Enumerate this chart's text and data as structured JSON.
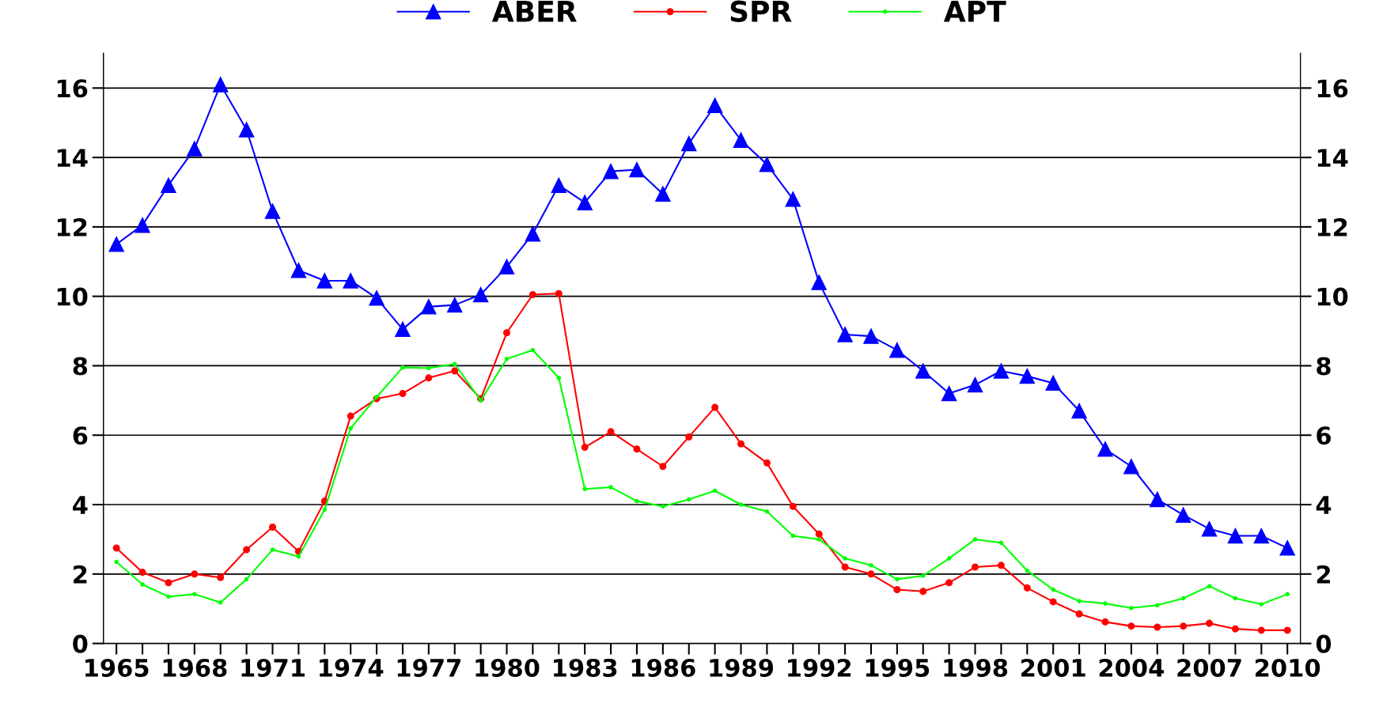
{
  "chart_data": {
    "type": "line",
    "categories": [
      "1965",
      null,
      null,
      "1968",
      null,
      null,
      "1971",
      null,
      null,
      "1974",
      null,
      null,
      "1977",
      null,
      null,
      "1980",
      null,
      null,
      "1983",
      null,
      null,
      "1986",
      null,
      null,
      "1989",
      null,
      null,
      "1992",
      null,
      null,
      "1995",
      null,
      null,
      "1998",
      null,
      null,
      "2001",
      null,
      null,
      "2004",
      null,
      null,
      "2007",
      null,
      null,
      "2010"
    ],
    "series": [
      {
        "name": "ABER",
        "color": "#0000ff",
        "marker": "triangle",
        "values": [
          11.5,
          12.05,
          13.2,
          14.25,
          16.1,
          14.8,
          12.45,
          10.75,
          10.45,
          10.45,
          9.95,
          9.05,
          9.7,
          9.75,
          10.05,
          10.85,
          11.8,
          13.2,
          12.7,
          13.6,
          13.65,
          12.95,
          14.4,
          15.5,
          14.5,
          13.8,
          12.8,
          10.4,
          8.9,
          8.85,
          8.45,
          7.85,
          7.2,
          7.45,
          7.85,
          7.7,
          7.5,
          6.7,
          5.6,
          5.1,
          4.15,
          3.7,
          3.3,
          3.1,
          3.1,
          2.75
        ]
      },
      {
        "name": "SPR",
        "color": "#ff0000",
        "marker": "circle",
        "values": [
          2.75,
          2.05,
          1.75,
          2.0,
          1.9,
          2.7,
          3.35,
          2.65,
          4.1,
          6.55,
          7.05,
          7.2,
          7.65,
          7.85,
          7.05,
          8.95,
          10.05,
          10.08,
          5.65,
          6.1,
          5.6,
          5.1,
          5.95,
          6.8,
          5.75,
          5.2,
          3.95,
          3.15,
          2.2,
          2.0,
          1.55,
          1.5,
          1.75,
          2.2,
          2.25,
          1.6,
          1.2,
          0.85,
          0.62,
          0.5,
          0.47,
          0.5,
          0.58,
          0.42,
          0.38,
          0.38
        ]
      },
      {
        "name": "APT",
        "color": "#00ff00",
        "marker": "circle",
        "values": [
          2.35,
          1.7,
          1.35,
          1.42,
          1.18,
          1.85,
          2.7,
          2.5,
          3.85,
          6.2,
          7.1,
          7.95,
          7.93,
          8.05,
          7.0,
          8.2,
          8.45,
          7.65,
          4.45,
          4.5,
          4.1,
          3.95,
          4.15,
          4.4,
          4.0,
          3.8,
          3.1,
          3.0,
          2.45,
          2.25,
          1.85,
          1.95,
          2.45,
          3.0,
          2.9,
          2.1,
          1.55,
          1.22,
          1.15,
          1.02,
          1.1,
          1.3,
          1.65,
          1.3,
          1.13,
          1.42
        ]
      }
    ],
    "ylim": [
      0,
      17
    ],
    "yticks": [
      0,
      2,
      4,
      6,
      8,
      10,
      12,
      14,
      16
    ],
    "y2lim": [
      0,
      17
    ],
    "y2ticks": [
      0,
      2,
      4,
      6,
      8,
      10,
      12,
      14,
      16
    ],
    "grid": "y",
    "legend": "top",
    "line_style": "solid"
  }
}
